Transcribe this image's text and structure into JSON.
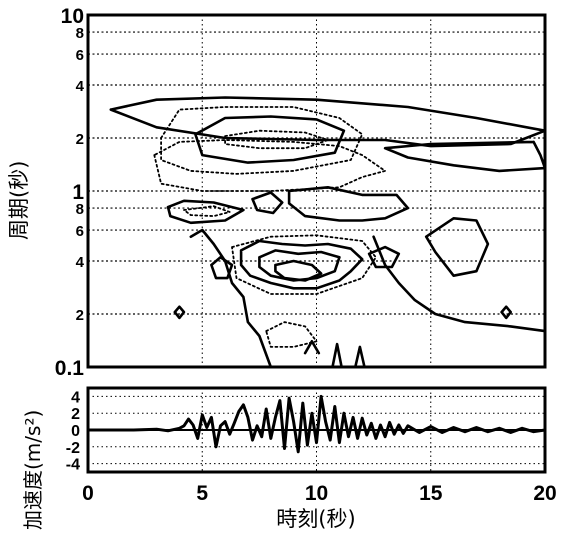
{
  "chart_data": [
    {
      "type": "contour",
      "ylabel": "周期(秒)",
      "xlim": [
        0,
        20
      ],
      "ylim": [
        0.1,
        10
      ],
      "yscale": "log",
      "grid": true,
      "x_ticks": [
        0,
        5,
        10,
        15,
        20
      ],
      "y_major_ticks": [
        {
          "value": 0.1,
          "label": "0.1"
        },
        {
          "value": 1,
          "label": "1"
        },
        {
          "value": 10,
          "label": "10"
        }
      ],
      "y_minor_ticks": [
        {
          "value": 0.2,
          "label": "2"
        },
        {
          "value": 0.4,
          "label": "4"
        },
        {
          "value": 0.6,
          "label": "6"
        },
        {
          "value": 0.8,
          "label": "8"
        },
        {
          "value": 2,
          "label": "2"
        },
        {
          "value": 4,
          "label": "4"
        },
        {
          "value": 6,
          "label": "6"
        },
        {
          "value": 8,
          "label": "8"
        }
      ],
      "contours": [
        {
          "style": "solid",
          "points": [
            [
              1,
              2.9
            ],
            [
              3,
              3.3
            ],
            [
              6,
              3.4
            ],
            [
              10,
              3.3
            ],
            [
              14,
              3.0
            ],
            [
              17,
              2.6
            ],
            [
              20,
              2.2
            ],
            [
              18.5,
              1.85
            ],
            [
              15,
              1.8
            ],
            [
              13,
              1.95
            ],
            [
              10,
              1.95
            ],
            [
              6,
              2.0
            ],
            [
              3,
              2.3
            ],
            [
              1,
              2.9
            ]
          ]
        },
        {
          "style": "solid",
          "points": [
            [
              19.5,
              1.9
            ],
            [
              19.8,
              1.6
            ],
            [
              20,
              1.35
            ],
            [
              18,
              1.3
            ],
            [
              16,
              1.4
            ],
            [
              14,
              1.55
            ],
            [
              13,
              1.75
            ],
            [
              15,
              1.85
            ],
            [
              19.5,
              1.9
            ]
          ]
        },
        {
          "style": "solid",
          "points": [
            [
              4.7,
              2.1
            ],
            [
              6,
              2.6
            ],
            [
              8,
              2.65
            ],
            [
              10,
              2.55
            ],
            [
              11.2,
              2.2
            ],
            [
              10.8,
              1.65
            ],
            [
              9,
              1.5
            ],
            [
              7,
              1.45
            ],
            [
              5,
              1.6
            ],
            [
              4.7,
              2.1
            ]
          ]
        },
        {
          "style": "dotted",
          "points": [
            [
              6,
              2.05
            ],
            [
              7.5,
              2.2
            ],
            [
              9.5,
              2.15
            ],
            [
              10.5,
              1.95
            ],
            [
              9.5,
              1.75
            ],
            [
              7.5,
              1.75
            ],
            [
              6,
              1.85
            ],
            [
              6,
              2.05
            ]
          ]
        },
        {
          "style": "dotted",
          "points": [
            [
              3.2,
              2.0
            ],
            [
              4,
              2.9
            ],
            [
              6,
              3.0
            ],
            [
              9,
              3.0
            ],
            [
              11,
              2.6
            ],
            [
              12,
              2.1
            ],
            [
              11.5,
              1.5
            ],
            [
              9,
              1.3
            ],
            [
              6.5,
              1.25
            ],
            [
              4.5,
              1.3
            ],
            [
              3.2,
              1.5
            ],
            [
              3.2,
              2.0
            ]
          ]
        },
        {
          "style": "dotted",
          "points": [
            [
              2.9,
              1.6
            ],
            [
              3.2,
              1.1
            ],
            [
              5,
              1.0
            ],
            [
              8,
              1.0
            ],
            [
              11,
              1.05
            ],
            [
              12,
              1.2
            ],
            [
              13,
              1.3
            ],
            [
              12,
              1.6
            ],
            [
              11,
              1.8
            ],
            [
              9,
              1.9
            ],
            [
              6,
              1.95
            ],
            [
              4,
              1.9
            ],
            [
              2.9,
              1.6
            ]
          ]
        },
        {
          "style": "solid",
          "points": [
            [
              3.5,
              0.81
            ],
            [
              4.2,
              0.88
            ],
            [
              5.5,
              0.86
            ],
            [
              6.8,
              0.78
            ],
            [
              6,
              0.68
            ],
            [
              4.5,
              0.66
            ],
            [
              3.6,
              0.72
            ],
            [
              3.5,
              0.81
            ]
          ]
        },
        {
          "style": "dotted",
          "points": [
            [
              4.2,
              0.78
            ],
            [
              5.5,
              0.82
            ],
            [
              6.2,
              0.76
            ],
            [
              5.5,
              0.72
            ],
            [
              4.5,
              0.73
            ],
            [
              4.2,
              0.78
            ]
          ]
        },
        {
          "style": "solid",
          "points": [
            [
              7.2,
              0.9
            ],
            [
              8,
              0.98
            ],
            [
              8.5,
              0.86
            ],
            [
              8.1,
              0.75
            ],
            [
              7.4,
              0.78
            ],
            [
              7.2,
              0.9
            ]
          ]
        },
        {
          "style": "solid",
          "points": [
            [
              8.8,
              1.0
            ],
            [
              10.5,
              1.05
            ],
            [
              12,
              0.95
            ],
            [
              13.5,
              0.95
            ],
            [
              14,
              0.8
            ],
            [
              13,
              0.7
            ],
            [
              12,
              0.68
            ],
            [
              11,
              0.68
            ],
            [
              9.5,
              0.72
            ],
            [
              8.8,
              0.85
            ],
            [
              8.8,
              1.0
            ]
          ]
        },
        {
          "style": "solid",
          "points": [
            [
              6.7,
              0.46
            ],
            [
              7.5,
              0.52
            ],
            [
              8.5,
              0.5
            ],
            [
              9.5,
              0.49
            ],
            [
              10.5,
              0.5
            ],
            [
              11.5,
              0.47
            ],
            [
              12,
              0.41
            ],
            [
              11.5,
              0.35
            ],
            [
              11,
              0.31
            ],
            [
              10,
              0.28
            ],
            [
              9,
              0.28
            ],
            [
              8,
              0.3
            ],
            [
              7.1,
              0.33
            ],
            [
              6.7,
              0.38
            ],
            [
              6.7,
              0.46
            ]
          ]
        },
        {
          "style": "solid",
          "points": [
            [
              7.5,
              0.42
            ],
            [
              8.2,
              0.46
            ],
            [
              9.2,
              0.44
            ],
            [
              10.2,
              0.45
            ],
            [
              11,
              0.42
            ],
            [
              10.8,
              0.35
            ],
            [
              10,
              0.32
            ],
            [
              9,
              0.31
            ],
            [
              8,
              0.33
            ],
            [
              7.5,
              0.37
            ],
            [
              7.5,
              0.42
            ]
          ]
        },
        {
          "style": "solid",
          "points": [
            [
              8.2,
              0.38
            ],
            [
              9,
              0.4
            ],
            [
              9.8,
              0.38
            ],
            [
              10.2,
              0.34
            ],
            [
              9.5,
              0.31
            ],
            [
              8.6,
              0.32
            ],
            [
              8.2,
              0.35
            ],
            [
              8.2,
              0.38
            ]
          ]
        },
        {
          "style": "dotted",
          "points": [
            [
              6.3,
              0.48
            ],
            [
              8,
              0.55
            ],
            [
              10,
              0.56
            ],
            [
              12,
              0.52
            ],
            [
              12.6,
              0.42
            ],
            [
              12,
              0.32
            ],
            [
              10,
              0.26
            ],
            [
              8,
              0.26
            ],
            [
              6.5,
              0.32
            ],
            [
              6.3,
              0.48
            ]
          ]
        },
        {
          "style": "solid",
          "points": [
            [
              5.4,
              0.38
            ],
            [
              5.8,
              0.42
            ],
            [
              6.3,
              0.38
            ],
            [
              6.1,
              0.32
            ],
            [
              5.6,
              0.32
            ],
            [
              5.4,
              0.38
            ]
          ]
        },
        {
          "style": "solid",
          "points": [
            [
              12.3,
              0.44
            ],
            [
              13,
              0.48
            ],
            [
              13.6,
              0.44
            ],
            [
              13.3,
              0.37
            ],
            [
              12.6,
              0.37
            ],
            [
              12.3,
              0.44
            ]
          ]
        },
        {
          "style": "solid",
          "points": [
            [
              14.8,
              0.55
            ],
            [
              16,
              0.7
            ],
            [
              17,
              0.68
            ],
            [
              17.5,
              0.5
            ],
            [
              17,
              0.35
            ],
            [
              16,
              0.33
            ],
            [
              15.2,
              0.45
            ],
            [
              14.8,
              0.55
            ]
          ]
        },
        {
          "style": "solid",
          "points": [
            [
              3.8,
              0.205
            ],
            [
              4.0,
              0.22
            ],
            [
              4.2,
              0.205
            ],
            [
              4.0,
              0.19
            ],
            [
              3.8,
              0.205
            ]
          ]
        },
        {
          "style": "solid",
          "points": [
            [
              18.1,
              0.205
            ],
            [
              18.3,
              0.22
            ],
            [
              18.5,
              0.205
            ],
            [
              18.3,
              0.19
            ],
            [
              18.1,
              0.205
            ]
          ]
        },
        {
          "style": "solid",
          "points": [
            [
              4.5,
              0.55
            ],
            [
              5,
              0.6
            ],
            [
              5.5,
              0.5
            ],
            [
              6,
              0.4
            ],
            [
              6.3,
              0.3
            ],
            [
              6.8,
              0.25
            ],
            [
              7,
              0.18
            ],
            [
              7.5,
              0.15
            ],
            [
              8,
              0.1
            ]
          ]
        },
        {
          "style": "solid",
          "points": [
            [
              12.5,
              0.55
            ],
            [
              13,
              0.38
            ],
            [
              13.6,
              0.3
            ],
            [
              14.3,
              0.24
            ],
            [
              15.2,
              0.2
            ],
            [
              16.5,
              0.18
            ],
            [
              18.5,
              0.17
            ],
            [
              20,
              0.16
            ]
          ]
        },
        {
          "style": "dotted",
          "points": [
            [
              7.8,
              0.16
            ],
            [
              8.6,
              0.18
            ],
            [
              9.5,
              0.17
            ],
            [
              10,
              0.14
            ],
            [
              9,
              0.13
            ],
            [
              8,
              0.13
            ],
            [
              7.8,
              0.16
            ]
          ]
        },
        {
          "style": "solid",
          "points": [
            [
              9.5,
              0.12
            ],
            [
              9.8,
              0.14
            ],
            [
              10.1,
              0.12
            ]
          ]
        },
        {
          "style": "solid",
          "points": [
            [
              11.7,
              0.1
            ],
            [
              11.9,
              0.13
            ],
            [
              12.1,
              0.1
            ]
          ]
        },
        {
          "style": "solid",
          "points": [
            [
              10.7,
              0.1
            ],
            [
              10.9,
              0.135
            ],
            [
              11.1,
              0.1
            ]
          ]
        }
      ]
    },
    {
      "type": "line",
      "ylabel": "加速度(m/s²)",
      "xlabel": "時刻(秒)",
      "xlim": [
        0,
        20
      ],
      "ylim": [
        -5,
        5
      ],
      "grid": true,
      "x_ticks": [
        0,
        5,
        10,
        15,
        20
      ],
      "y_ticks": [
        -4,
        -2,
        0,
        2,
        4
      ],
      "series": [
        {
          "x": [
            0,
            2,
            3,
            3.5,
            4,
            4.2,
            4.4,
            4.6,
            4.8,
            5.0,
            5.2,
            5.4,
            5.6,
            5.8,
            6.0,
            6.2,
            6.4,
            6.6,
            6.8,
            7.0,
            7.2,
            7.4,
            7.6,
            7.8,
            8.0,
            8.2,
            8.4,
            8.6,
            8.8,
            9.0,
            9.2,
            9.4,
            9.6,
            9.8,
            10.0,
            10.2,
            10.4,
            10.6,
            10.8,
            11.0,
            11.2,
            11.4,
            11.6,
            11.8,
            12.0,
            12.2,
            12.4,
            12.6,
            12.8,
            13.0,
            13.2,
            13.4,
            13.6,
            13.8,
            14.0,
            14.5,
            15,
            15.5,
            16,
            16.5,
            17,
            17.5,
            18,
            18.5,
            19,
            19.5,
            20
          ],
          "y": [
            0,
            0,
            0.1,
            -0.1,
            0.2,
            0.5,
            1.3,
            0.6,
            -1.0,
            1.8,
            0.3,
            1.5,
            -2.0,
            0.5,
            1.0,
            -0.5,
            0.8,
            2.2,
            3.0,
            1.5,
            -1.2,
            0.5,
            -0.8,
            2.5,
            -1.0,
            1.5,
            3.5,
            -2.2,
            3.8,
            1.0,
            -2.6,
            3.2,
            -1.8,
            2.0,
            -1.5,
            4.0,
            1.0,
            -1.2,
            2.8,
            -1.5,
            2.0,
            -0.8,
            1.5,
            -1.0,
            1.4,
            -0.6,
            0.8,
            -1.0,
            0.6,
            -0.8,
            0.9,
            -0.5,
            0.6,
            -0.4,
            0.5,
            -0.3,
            0.4,
            -0.3,
            0.3,
            -0.2,
            0.3,
            -0.2,
            0.2,
            -0.3,
            0.2,
            -0.2,
            0
          ]
        }
      ]
    }
  ]
}
